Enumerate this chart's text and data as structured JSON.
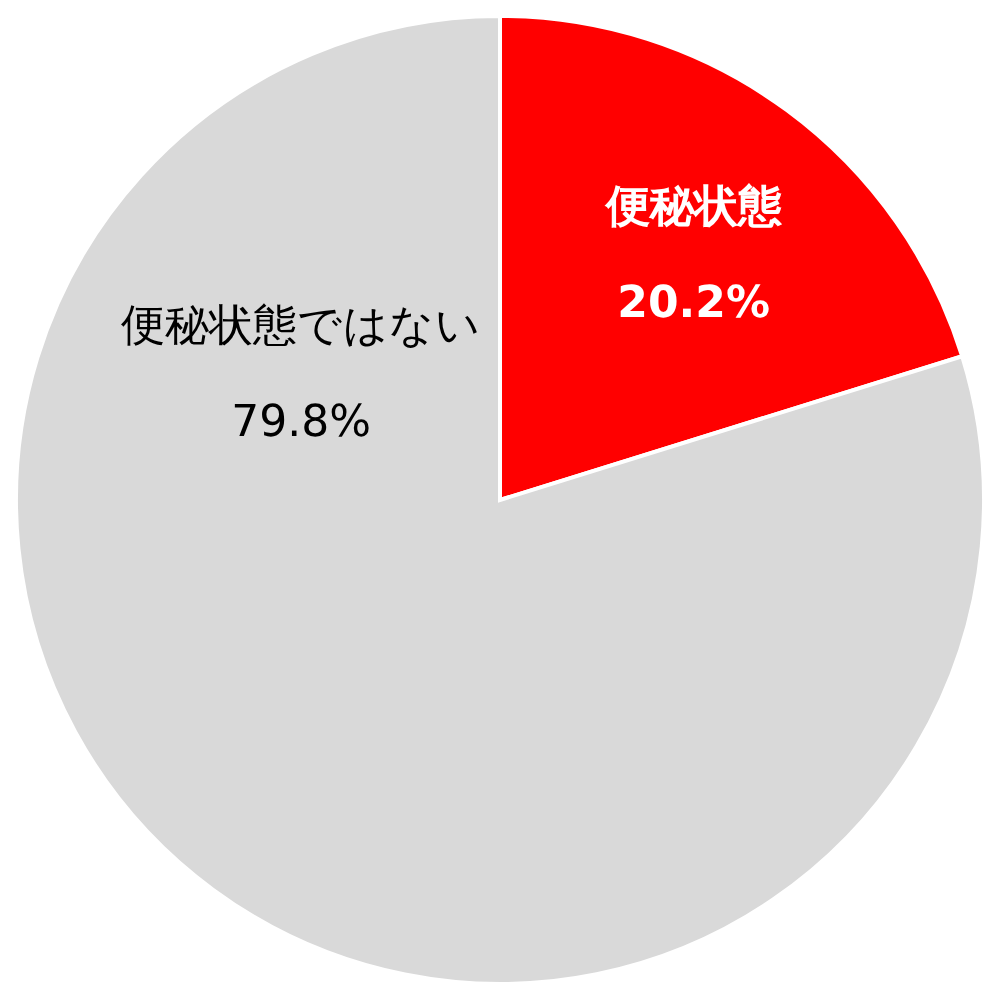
{
  "chart_data": {
    "type": "pie",
    "categories": [
      "便秘状態",
      "便秘状態ではない"
    ],
    "values": [
      20.2,
      79.8
    ],
    "colors": [
      "#ff0000",
      "#d9d9d9"
    ],
    "value_labels": [
      "20.2%",
      "79.8%"
    ]
  }
}
